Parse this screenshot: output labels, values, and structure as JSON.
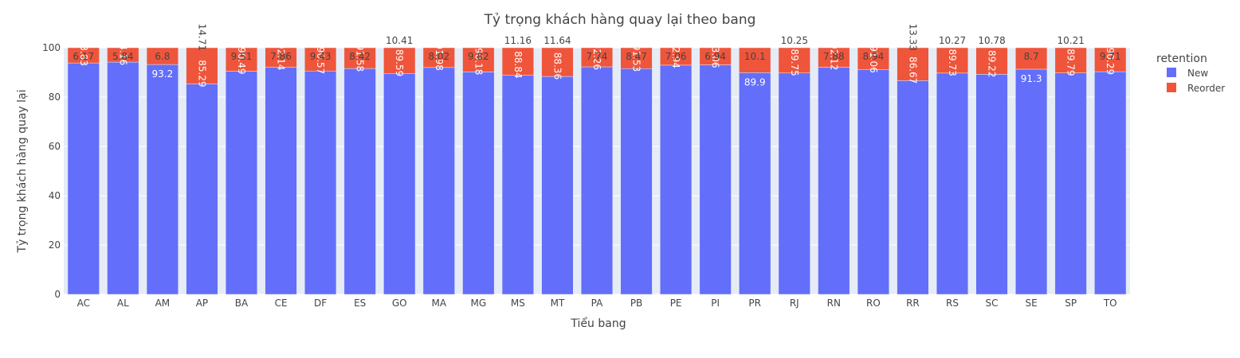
{
  "chart_data": {
    "type": "bar",
    "stacked": true,
    "title": "Tỷ trọng khách hàng quay lại theo bang",
    "xlabel": "Tiểu bang",
    "ylabel": "Tỷ trọng khách hàng quay lại",
    "ylim": [
      0,
      100
    ],
    "yticks": [
      0,
      20,
      40,
      60,
      80,
      100
    ],
    "grid": true,
    "legend_title": "retention",
    "legend_position": "top-right",
    "categories": [
      "AC",
      "AL",
      "AM",
      "AP",
      "BA",
      "CE",
      "DF",
      "ES",
      "GO",
      "MA",
      "MG",
      "MS",
      "MT",
      "PA",
      "PB",
      "PE",
      "PI",
      "PR",
      "RJ",
      "RN",
      "RO",
      "RR",
      "RS",
      "SC",
      "SE",
      "SP",
      "TO"
    ],
    "series": [
      {
        "name": "New",
        "color": "#636efa",
        "values": [
          93.83,
          94.16,
          93.2,
          85.29,
          90.49,
          92.14,
          90.57,
          91.58,
          89.59,
          91.98,
          90.18,
          88.84,
          88.36,
          92.26,
          91.53,
          92.94,
          93.06,
          89.9,
          89.75,
          92.12,
          91.06,
          86.67,
          89.73,
          89.22,
          91.3,
          89.79,
          90.29
        ],
        "labels": [
          "93.83",
          "94.16",
          "93.2",
          "85.29",
          "90.49",
          "92.14",
          "90.57",
          "91.58",
          "89.59",
          "91.98",
          "90.18",
          "88.84",
          "88.36",
          "92.26",
          "91.53",
          "92.94",
          "93.06",
          "89.9",
          "89.75",
          "92.12",
          "91.06",
          "86.67",
          "89.73",
          "89.22",
          "91.3",
          "89.79",
          "90.29"
        ]
      },
      {
        "name": "Reorder",
        "color": "#ef553b",
        "values": [
          6.17,
          5.84,
          6.8,
          14.71,
          9.51,
          7.86,
          9.43,
          8.42,
          10.41,
          8.02,
          9.82,
          11.16,
          11.64,
          7.74,
          8.47,
          7.06,
          6.94,
          10.1,
          10.25,
          7.88,
          8.94,
          13.33,
          10.27,
          10.78,
          8.7,
          10.21,
          9.71
        ],
        "labels": [
          "6.17",
          "5.84",
          "6.8",
          "14.71",
          "9.51",
          "7.86",
          "9.43",
          "8.42",
          "10.41",
          "8.02",
          "9.82",
          "11.16",
          "11.64",
          "7.74",
          "8.47",
          "7.06",
          "6.94",
          "10.1",
          "10.25",
          "7.88",
          "8.94",
          "13.33",
          "10.27",
          "10.78",
          "8.7",
          "10.21",
          "9.71"
        ]
      }
    ]
  }
}
